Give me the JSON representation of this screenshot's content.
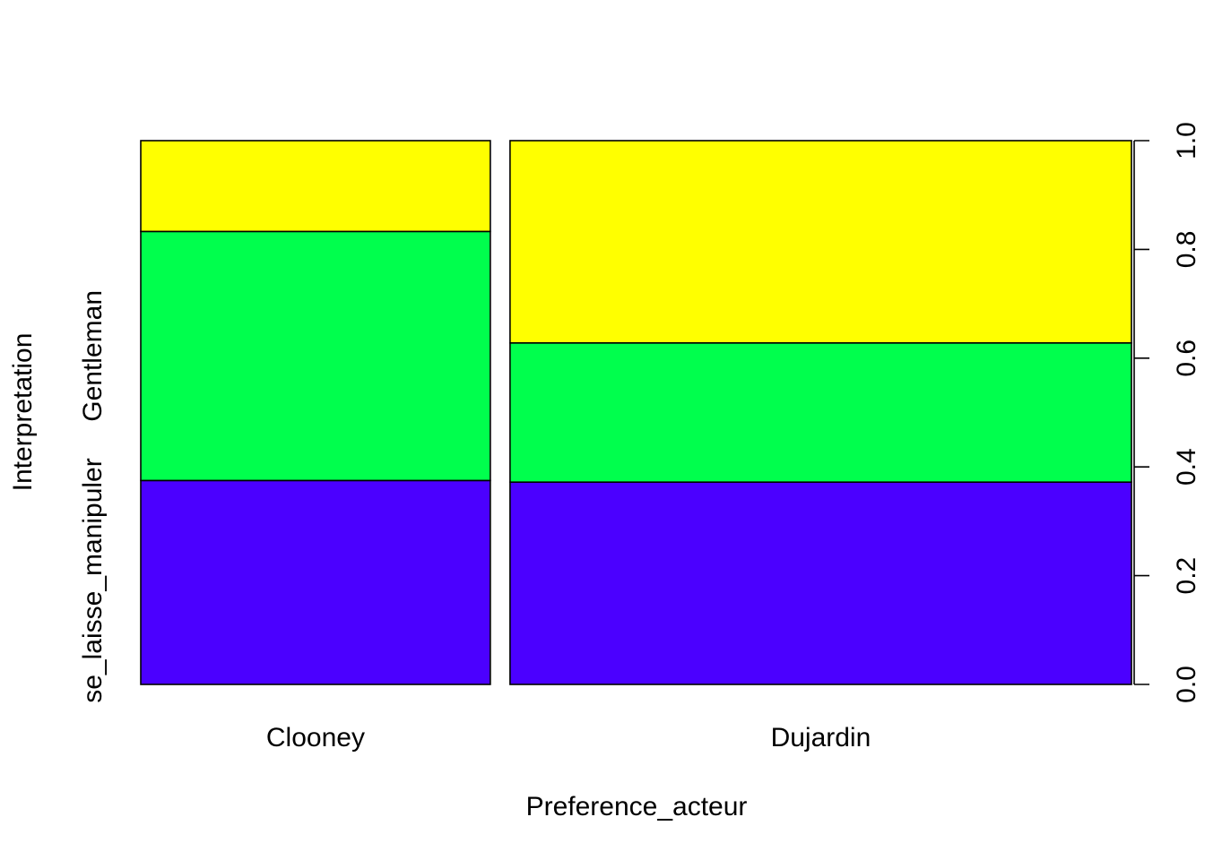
{
  "chart_data": {
    "type": "spineplot",
    "xlabel": "Preference_acteur",
    "ylabel": "Interpretation",
    "categories": [
      "Clooney",
      "Dujardin"
    ],
    "category_widths": [
      0.36,
      0.64
    ],
    "levels": [
      "se_laisse_manipuler",
      "Gentleman",
      ""
    ],
    "level_axis_labels": [
      "se_laisse_manipuler",
      "Gentleman"
    ],
    "colors": [
      "#4B00FF",
      "#00FF4D",
      "#FFFF00"
    ],
    "series": [
      {
        "values": [
          0.375,
          0.372
        ]
      },
      {
        "values": [
          0.458,
          0.256
        ]
      },
      {
        "values": [
          0.167,
          0.372
        ]
      }
    ],
    "ylim": [
      0,
      1
    ],
    "y_ticks": [
      "0.0",
      "0.2",
      "0.4",
      "0.6",
      "0.8",
      "1.0"
    ],
    "right_axis": true
  }
}
